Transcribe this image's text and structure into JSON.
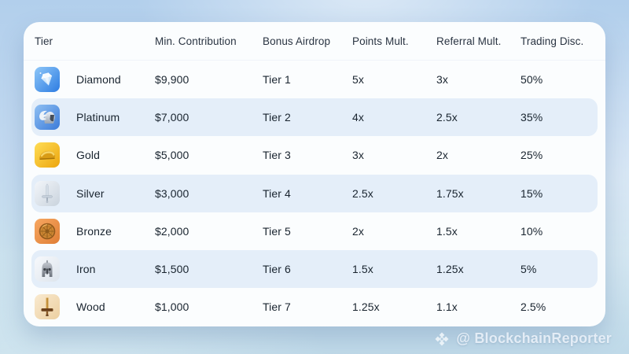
{
  "chart_data": {
    "type": "table",
    "columns": [
      "Tier",
      "Min. Contribution",
      "Bonus Airdrop",
      "Points Mult.",
      "Referral Mult.",
      "Trading Disc."
    ],
    "rows": [
      {
        "icon": "diamond-icon",
        "tier": "Diamond",
        "min_contribution": "$9,900",
        "bonus_airdrop": "Tier 1",
        "points_mult": "5x",
        "referral_mult": "3x",
        "trading_disc": "50%"
      },
      {
        "icon": "platinum-icon",
        "tier": "Platinum",
        "min_contribution": "$7,000",
        "bonus_airdrop": "Tier 2",
        "points_mult": "4x",
        "referral_mult": "2.5x",
        "trading_disc": "35%"
      },
      {
        "icon": "gold-icon",
        "tier": "Gold",
        "min_contribution": "$5,000",
        "bonus_airdrop": "Tier 3",
        "points_mult": "3x",
        "referral_mult": "2x",
        "trading_disc": "25%"
      },
      {
        "icon": "silver-icon",
        "tier": "Silver",
        "min_contribution": "$3,000",
        "bonus_airdrop": "Tier 4",
        "points_mult": "2.5x",
        "referral_mult": "1.75x",
        "trading_disc": "15%"
      },
      {
        "icon": "bronze-icon",
        "tier": "Bronze",
        "min_contribution": "$2,000",
        "bonus_airdrop": "Tier 5",
        "points_mult": "2x",
        "referral_mult": "1.5x",
        "trading_disc": "10%"
      },
      {
        "icon": "iron-icon",
        "tier": "Iron",
        "min_contribution": "$1,500",
        "bonus_airdrop": "Tier 6",
        "points_mult": "1.5x",
        "referral_mult": "1.25x",
        "trading_disc": "5%"
      },
      {
        "icon": "wood-icon",
        "tier": "Wood",
        "min_contribution": "$1,000",
        "bonus_airdrop": "Tier 7",
        "points_mult": "1.25x",
        "referral_mult": "1.1x",
        "trading_disc": "2.5%"
      }
    ],
    "legend_position": "none",
    "grid": "row-striped"
  },
  "watermark": {
    "logo_icon": "blockchainreporter-diamond-icon",
    "handle": "@ BlockchainReporter"
  },
  "colors": {
    "background_top": "#b2cfec",
    "background_bottom": "#c0dae9",
    "card_bg": "#fbfdfe",
    "row_stripe": "#e4eef9",
    "text": "#19242f",
    "header_text": "#2a3442",
    "watermark_text": "#eef5fb"
  }
}
